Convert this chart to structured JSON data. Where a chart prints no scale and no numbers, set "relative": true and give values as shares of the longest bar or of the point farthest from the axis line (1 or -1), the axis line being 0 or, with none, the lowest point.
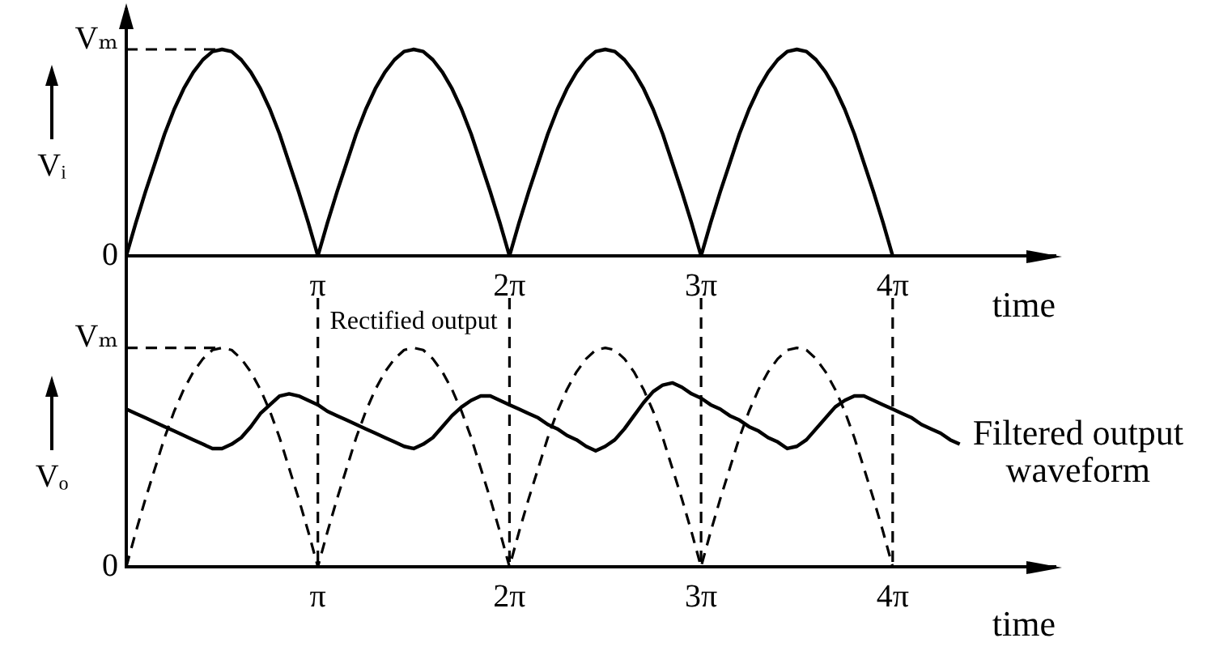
{
  "chart_data": [
    {
      "type": "line",
      "relative": true,
      "ylabel": "Vᵢ",
      "xlabel": "time",
      "categories": [
        null,
        null,
        null,
        null,
        null,
        null,
        null,
        null,
        null,
        null,
        null,
        null,
        null,
        null,
        null,
        null,
        null,
        null,
        null,
        null,
        "π",
        null,
        null,
        null,
        null,
        null,
        null,
        null,
        null,
        null,
        null,
        null,
        null,
        null,
        null,
        null,
        null,
        null,
        null,
        null,
        "2π",
        null,
        null,
        null,
        null,
        null,
        null,
        null,
        null,
        null,
        null,
        null,
        null,
        null,
        null,
        null,
        null,
        null,
        null,
        null,
        "3π",
        null,
        null,
        null,
        null,
        null,
        null,
        null,
        null,
        null,
        null,
        null,
        null,
        null,
        null,
        null,
        null,
        null,
        null,
        null,
        "4π",
        null,
        null,
        null,
        null,
        null,
        null,
        null,
        null,
        null,
        null,
        null,
        null,
        null,
        null,
        null,
        null,
        null
      ],
      "ref_lines": [
        {
          "axis": "y",
          "value": 1,
          "label": "Vₘ",
          "line_style": "dashed"
        }
      ],
      "annotations": [
        "0"
      ],
      "series": [
        {
          "color": "#000000",
          "values": [
            0,
            0.16,
            0.31,
            0.45,
            0.59,
            0.71,
            0.81,
            0.89,
            0.95,
            0.99,
            1,
            0.99,
            0.95,
            0.89,
            0.81,
            0.71,
            0.59,
            0.45,
            0.31,
            0.16,
            0,
            0.16,
            0.31,
            0.45,
            0.59,
            0.71,
            0.81,
            0.89,
            0.95,
            0.99,
            1,
            0.99,
            0.95,
            0.89,
            0.81,
            0.71,
            0.59,
            0.45,
            0.31,
            0.16,
            0,
            0.16,
            0.31,
            0.45,
            0.59,
            0.71,
            0.81,
            0.89,
            0.95,
            0.99,
            1,
            0.99,
            0.95,
            0.89,
            0.81,
            0.71,
            0.59,
            0.45,
            0.31,
            0.16,
            0,
            0.16,
            0.31,
            0.45,
            0.59,
            0.71,
            0.81,
            0.89,
            0.95,
            0.99,
            1,
            0.99,
            0.95,
            0.89,
            0.81,
            0.71,
            0.59,
            0.45,
            0.31,
            0.16,
            0,
            null,
            null,
            null,
            null,
            null,
            null,
            null,
            null,
            null,
            null,
            null,
            null,
            null,
            null,
            null,
            null,
            null
          ]
        }
      ]
    },
    {
      "type": "line",
      "relative": true,
      "ylabel": "Vₒ",
      "xlabel": "time",
      "categories": [
        null,
        null,
        null,
        null,
        null,
        null,
        null,
        null,
        null,
        null,
        null,
        null,
        null,
        null,
        null,
        null,
        null,
        null,
        null,
        null,
        "π",
        null,
        null,
        null,
        null,
        null,
        null,
        null,
        null,
        null,
        null,
        null,
        null,
        null,
        null,
        null,
        null,
        null,
        null,
        null,
        "2π",
        null,
        null,
        null,
        null,
        null,
        null,
        null,
        null,
        null,
        null,
        null,
        null,
        null,
        null,
        null,
        null,
        null,
        null,
        null,
        "3π",
        null,
        null,
        null,
        null,
        null,
        null,
        null,
        null,
        null,
        null,
        null,
        null,
        null,
        null,
        null,
        null,
        null,
        null,
        null,
        "4π",
        null,
        null,
        null,
        null,
        null,
        null,
        null,
        null,
        null,
        null,
        null,
        null,
        null,
        null,
        null,
        null,
        null
      ],
      "ref_lines": [
        {
          "axis": "y",
          "value": 1,
          "label": "Vₘ",
          "line_style": "dashed"
        },
        {
          "axis": "x",
          "value": "π",
          "line_style": "dashed"
        },
        {
          "axis": "x",
          "value": "2π",
          "line_style": "dashed"
        },
        {
          "axis": "x",
          "value": "3π",
          "line_style": "dashed"
        },
        {
          "axis": "x",
          "value": "4π",
          "line_style": "dashed"
        }
      ],
      "annotations": [
        "0"
      ],
      "series": [
        {
          "name": "Rectified output",
          "color": "#000000",
          "line_style": "dashed",
          "values": [
            0,
            0.16,
            0.31,
            0.45,
            0.59,
            0.71,
            0.81,
            0.89,
            0.95,
            0.99,
            1,
            0.99,
            0.95,
            0.89,
            0.81,
            0.71,
            0.59,
            0.45,
            0.31,
            0.16,
            0,
            0.16,
            0.31,
            0.45,
            0.59,
            0.71,
            0.81,
            0.89,
            0.95,
            0.99,
            1,
            0.99,
            0.95,
            0.89,
            0.81,
            0.71,
            0.59,
            0.45,
            0.31,
            0.16,
            0,
            0.16,
            0.31,
            0.45,
            0.59,
            0.71,
            0.81,
            0.89,
            0.95,
            0.99,
            1,
            0.99,
            0.95,
            0.89,
            0.81,
            0.71,
            0.59,
            0.45,
            0.31,
            0.16,
            0,
            0.16,
            0.31,
            0.45,
            0.59,
            0.71,
            0.81,
            0.89,
            0.95,
            0.99,
            1,
            0.99,
            0.95,
            0.89,
            0.81,
            0.71,
            0.59,
            0.45,
            0.31,
            0.16,
            0,
            null,
            null,
            null,
            null,
            null,
            null,
            null,
            null,
            null,
            null,
            null,
            null,
            null,
            null,
            null,
            null,
            null
          ]
        },
        {
          "name": "Filtered output waveform",
          "color": "#000000",
          "values": [
            0.72,
            0.7,
            0.68,
            0.66,
            0.64,
            0.62,
            0.6,
            0.58,
            0.56,
            0.54,
            0.54,
            0.56,
            0.59,
            0.64,
            0.7,
            0.74,
            0.78,
            0.79,
            0.78,
            0.76,
            0.74,
            0.71,
            0.69,
            0.67,
            0.65,
            0.63,
            0.61,
            0.59,
            0.57,
            0.55,
            0.54,
            0.56,
            0.59,
            0.64,
            0.69,
            0.73,
            0.76,
            0.78,
            0.78,
            0.76,
            0.74,
            0.72,
            0.7,
            0.68,
            0.65,
            0.63,
            0.6,
            0.58,
            0.55,
            0.53,
            0.55,
            0.58,
            0.63,
            0.69,
            0.75,
            0.8,
            0.83,
            0.84,
            0.82,
            0.79,
            0.77,
            0.74,
            0.72,
            0.69,
            0.67,
            0.64,
            0.62,
            0.59,
            0.57,
            0.54,
            0.55,
            0.58,
            0.63,
            0.68,
            0.73,
            0.76,
            0.78,
            0.78,
            0.76,
            0.74,
            0.72,
            0.7,
            0.68,
            0.65,
            0.63,
            0.61,
            0.58,
            0.56,
            null,
            null,
            null,
            null,
            null,
            null,
            null,
            null,
            null,
            null
          ]
        }
      ]
    }
  ]
}
